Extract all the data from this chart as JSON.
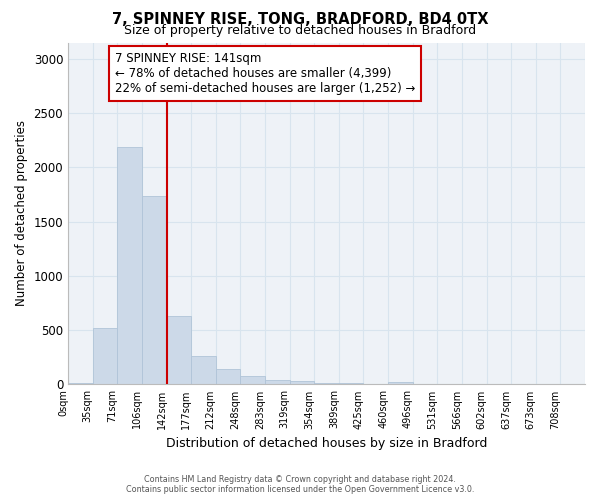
{
  "title1": "7, SPINNEY RISE, TONG, BRADFORD, BD4 0TX",
  "title2": "Size of property relative to detached houses in Bradford",
  "xlabel": "Distribution of detached houses by size in Bradford",
  "ylabel": "Number of detached properties",
  "bin_labels": [
    "0sqm",
    "35sqm",
    "71sqm",
    "106sqm",
    "142sqm",
    "177sqm",
    "212sqm",
    "248sqm",
    "283sqm",
    "319sqm",
    "354sqm",
    "389sqm",
    "425sqm",
    "460sqm",
    "496sqm",
    "531sqm",
    "566sqm",
    "602sqm",
    "637sqm",
    "673sqm",
    "708sqm"
  ],
  "values": [
    10,
    520,
    2190,
    1740,
    630,
    260,
    140,
    75,
    45,
    30,
    15,
    10,
    5,
    20,
    5,
    5,
    0,
    0,
    0,
    0,
    0
  ],
  "bar_facecolor": "#ccd9e8",
  "bar_edgecolor": "#b0c4d8",
  "vline_x": 4,
  "vline_color": "#cc0000",
  "ylim": [
    0,
    3150
  ],
  "yticks": [
    0,
    500,
    1000,
    1500,
    2000,
    2500,
    3000
  ],
  "annotation_title": "7 SPINNEY RISE: 141sqm",
  "annotation_line1": "← 78% of detached houses are smaller (4,399)",
  "annotation_line2": "22% of semi-detached houses are larger (1,252) →",
  "annotation_box_edgecolor": "#cc0000",
  "grid_color": "#d8e4ee",
  "plot_bg_color": "#eef2f7",
  "footer1": "Contains HM Land Registry data © Crown copyright and database right 2024.",
  "footer2": "Contains public sector information licensed under the Open Government Licence v3.0."
}
